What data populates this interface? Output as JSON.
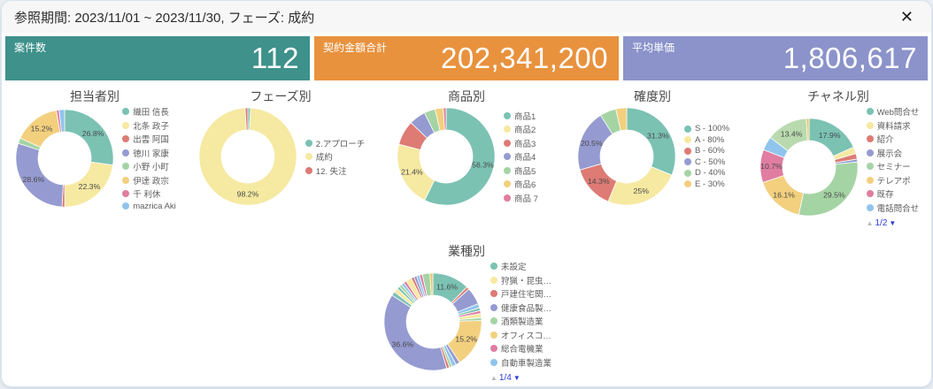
{
  "header": {
    "title": "参照期間: 2023/11/01 ~ 2023/11/30, フェーズ: 成約",
    "close_label": "✕"
  },
  "kpis": [
    {
      "label": "案件数",
      "value": "112",
      "color": "#3F918B"
    },
    {
      "label": "契約金額合計",
      "value": "202,341,200",
      "color": "#E8923E"
    },
    {
      "label": "平均単価",
      "value": "1,806,617",
      "color": "#8B93CA"
    }
  ],
  "chart_data": [
    {
      "type": "donut",
      "title": "担当者別",
      "slices": [
        {
          "name": "織田 信長",
          "value": 26.8,
          "color": "#7BC2B3",
          "pct": "26.8%"
        },
        {
          "name": "北条 政子",
          "value": 22.3,
          "color": "#F6E9A1",
          "pct": "22.3%"
        },
        {
          "name": "出雲 阿国",
          "value": 0.9,
          "color": "#DD7B74"
        },
        {
          "name": "徳川 家康",
          "value": 28.6,
          "color": "#959BD1",
          "pct": "28.6%"
        },
        {
          "name": "小野 小町",
          "value": 1.8,
          "color": "#A5D4A4"
        },
        {
          "name": "伊達 政宗",
          "value": 15.2,
          "color": "#F3D07E",
          "pct": "15.2%"
        },
        {
          "name": "千 利休",
          "value": 0.9,
          "color": "#E07DA0"
        },
        {
          "name": "mazrica Aki",
          "value": 1.8,
          "color": "#90C4EC"
        }
      ],
      "legend": [
        {
          "label": "織田 信長",
          "color": "#7BC2B3"
        },
        {
          "label": "北条 政子",
          "color": "#F6E9A1"
        },
        {
          "label": "出雲 阿国",
          "color": "#DD7B74"
        },
        {
          "label": "徳川 家康",
          "color": "#959BD1"
        },
        {
          "label": "小野 小町",
          "color": "#A5D4A4"
        },
        {
          "label": "伊達 政宗",
          "color": "#F3D07E"
        },
        {
          "label": "千 利休",
          "color": "#E07DA0"
        },
        {
          "label": "mazrica Aki",
          "color": "#90C4EC"
        }
      ],
      "pagination": null
    },
    {
      "type": "donut",
      "title": "フェーズ別",
      "slices": [
        {
          "name": "2.アプローチ",
          "value": 0.9,
          "color": "#7BC2B3"
        },
        {
          "name": "成約",
          "value": 98.2,
          "color": "#F6E9A1",
          "pct": "98.2%"
        },
        {
          "name": "12. 失注",
          "value": 0.9,
          "color": "#DD7B74"
        }
      ],
      "legend": [
        {
          "label": "2.アプローチ",
          "color": "#7BC2B3"
        },
        {
          "label": "成約",
          "color": "#F6E9A1"
        },
        {
          "label": "12. 失注",
          "color": "#DD7B74"
        }
      ],
      "pagination": null
    },
    {
      "type": "donut",
      "title": "商品別",
      "slices": [
        {
          "name": "商品1",
          "value": 56.3,
          "color": "#7BC2B3",
          "pct": "56.3%"
        },
        {
          "name": "商品2",
          "value": 21.4,
          "color": "#F6E9A1",
          "pct": "21.4%"
        },
        {
          "name": "商品3",
          "value": 8.0,
          "color": "#DD7B74"
        },
        {
          "name": "商品4",
          "value": 5.4,
          "color": "#959BD1"
        },
        {
          "name": "商品5",
          "value": 3.6,
          "color": "#A5D4A4"
        },
        {
          "name": "商品6",
          "value": 2.7,
          "color": "#F3D07E"
        },
        {
          "name": "商品 7",
          "value": 0.9,
          "color": "#E07DA0"
        }
      ],
      "legend": [
        {
          "label": "商品1",
          "color": "#7BC2B3"
        },
        {
          "label": "商品2",
          "color": "#F6E9A1"
        },
        {
          "label": "商品3",
          "color": "#DD7B74"
        },
        {
          "label": "商品4",
          "color": "#959BD1"
        },
        {
          "label": "商品5",
          "color": "#A5D4A4"
        },
        {
          "label": "商品6",
          "color": "#F3D07E"
        },
        {
          "label": "商品 7",
          "color": "#E07DA0"
        }
      ],
      "pagination": null
    },
    {
      "type": "donut",
      "title": "確度別",
      "slices": [
        {
          "name": "S - 100%",
          "value": 31.3,
          "color": "#7BC2B3",
          "pct": "31.3%"
        },
        {
          "name": "A - 80%",
          "value": 25.0,
          "color": "#F6E9A1",
          "pct": "25%"
        },
        {
          "name": "B - 60%",
          "value": 14.3,
          "color": "#DD7B74",
          "pct": "14.3%"
        },
        {
          "name": "C - 50%",
          "value": 20.5,
          "color": "#959BD1",
          "pct": "20.5%"
        },
        {
          "name": "D - 40%",
          "value": 5.4,
          "color": "#A5D4A4"
        },
        {
          "name": "E - 30%",
          "value": 3.6,
          "color": "#F3D07E"
        }
      ],
      "legend": [
        {
          "label": "S - 100%",
          "color": "#7BC2B3"
        },
        {
          "label": "A - 80%",
          "color": "#F6E9A1"
        },
        {
          "label": "B - 60%",
          "color": "#DD7B74"
        },
        {
          "label": "C - 50%",
          "color": "#959BD1"
        },
        {
          "label": "D - 40%",
          "color": "#A5D4A4"
        },
        {
          "label": "E - 30%",
          "color": "#F3D07E"
        }
      ],
      "pagination": null
    },
    {
      "type": "donut",
      "title": "チャネル別",
      "slices": [
        {
          "name": "Web問合せ",
          "value": 17.9,
          "color": "#7BC2B3",
          "pct": "17.9%"
        },
        {
          "name": "資料請求",
          "value": 2.2,
          "color": "#F6E9A1"
        },
        {
          "name": "紹介",
          "value": 1.8,
          "color": "#DD7B74"
        },
        {
          "name": "展示会",
          "value": 0.9,
          "color": "#959BD1"
        },
        {
          "name": "セミナー",
          "value": 29.5,
          "color": "#A5D4A4",
          "pct": "29.5%"
        },
        {
          "name": "テレアポ",
          "value": 16.1,
          "color": "#F3D07E",
          "pct": "16.1%"
        },
        {
          "name": "既存",
          "value": 10.7,
          "color": "#E07DA0",
          "pct": "10.7%"
        },
        {
          "name": "電話問合せ",
          "value": 4.5,
          "color": "#90C4EC"
        },
        {
          "value": 13.4,
          "color": "#B9DAAF",
          "pct": "13.4%"
        },
        {
          "value": 0.9,
          "color": "#E8C76B"
        }
      ],
      "legend": [
        {
          "label": "Web問合せ",
          "color": "#7BC2B3"
        },
        {
          "label": "資料請求",
          "color": "#F6E9A1"
        },
        {
          "label": "紹介",
          "color": "#DD7B74"
        },
        {
          "label": "展示会",
          "color": "#959BD1"
        },
        {
          "label": "セミナー",
          "color": "#A5D4A4"
        },
        {
          "label": "テレアポ",
          "color": "#F3D07E"
        },
        {
          "label": "既存",
          "color": "#E07DA0"
        },
        {
          "label": "電話問合せ",
          "color": "#90C4EC"
        }
      ],
      "pagination": {
        "up": "▲",
        "current": "1/2",
        "down": "▼"
      }
    },
    {
      "type": "donut",
      "title": "業種別",
      "slices": [
        {
          "name": "未設定",
          "value": 11.6,
          "color": "#7BC2B3",
          "pct": "11.6%"
        },
        {
          "value": 0.9,
          "color": "#DD7B74"
        },
        {
          "value": 5.4,
          "color": "#959BD1"
        },
        {
          "value": 1.3,
          "color": "#90C4EC"
        },
        {
          "value": 0.9,
          "color": "#7BC2B3"
        },
        {
          "value": 0.9,
          "color": "#E07DA0"
        },
        {
          "value": 1.3,
          "color": "#F6E9A1"
        },
        {
          "value": 0.9,
          "color": "#A5D4A4"
        },
        {
          "name": "オフィスコ…",
          "value": 15.2,
          "color": "#F3D07E",
          "pct": "15.2%"
        },
        {
          "value": 1.3,
          "color": "#959BD1"
        },
        {
          "value": 1.3,
          "color": "#90C4EC"
        },
        {
          "value": 0.9,
          "color": "#A5D4A4"
        },
        {
          "value": 0.9,
          "color": "#DD7B74"
        },
        {
          "name": "健康食品製…",
          "value": 36.6,
          "color": "#959BD1",
          "pct": "36.6%"
        },
        {
          "value": 1.3,
          "color": "#7BC2B3"
        },
        {
          "value": 1.3,
          "color": "#F6E9A1"
        },
        {
          "value": 0.9,
          "color": "#7BC2B3"
        },
        {
          "value": 0.9,
          "color": "#A5D4A4"
        },
        {
          "value": 0.9,
          "color": "#90C4EC"
        },
        {
          "value": 0.9,
          "color": "#E07DA0"
        },
        {
          "value": 1.8,
          "color": "#F6E9A1"
        },
        {
          "value": 0.9,
          "color": "#DD7B74"
        },
        {
          "value": 0.9,
          "color": "#959BD1"
        },
        {
          "value": 0.9,
          "color": "#90C4EC"
        },
        {
          "value": 0.9,
          "color": "#E07DA0"
        },
        {
          "value": 2.4,
          "color": "#A5D4A4"
        },
        {
          "value": 0.9,
          "color": "#E8C76B"
        }
      ],
      "legend": [
        {
          "label": "未設定",
          "color": "#7BC2B3"
        },
        {
          "label": "狩猟・昆虫…",
          "color": "#F6E9A1"
        },
        {
          "label": "戸建住宅関…",
          "color": "#DD7B74"
        },
        {
          "label": "健康食品製…",
          "color": "#959BD1"
        },
        {
          "label": "酒類製造業",
          "color": "#A5D4A4"
        },
        {
          "label": "オフィスコ…",
          "color": "#F3D07E"
        },
        {
          "label": "総合電機業",
          "color": "#E07DA0"
        },
        {
          "label": "自動車製造業",
          "color": "#90C4EC"
        }
      ],
      "pagination": {
        "up": "▲",
        "current": "1/4",
        "down": "▼"
      }
    }
  ]
}
